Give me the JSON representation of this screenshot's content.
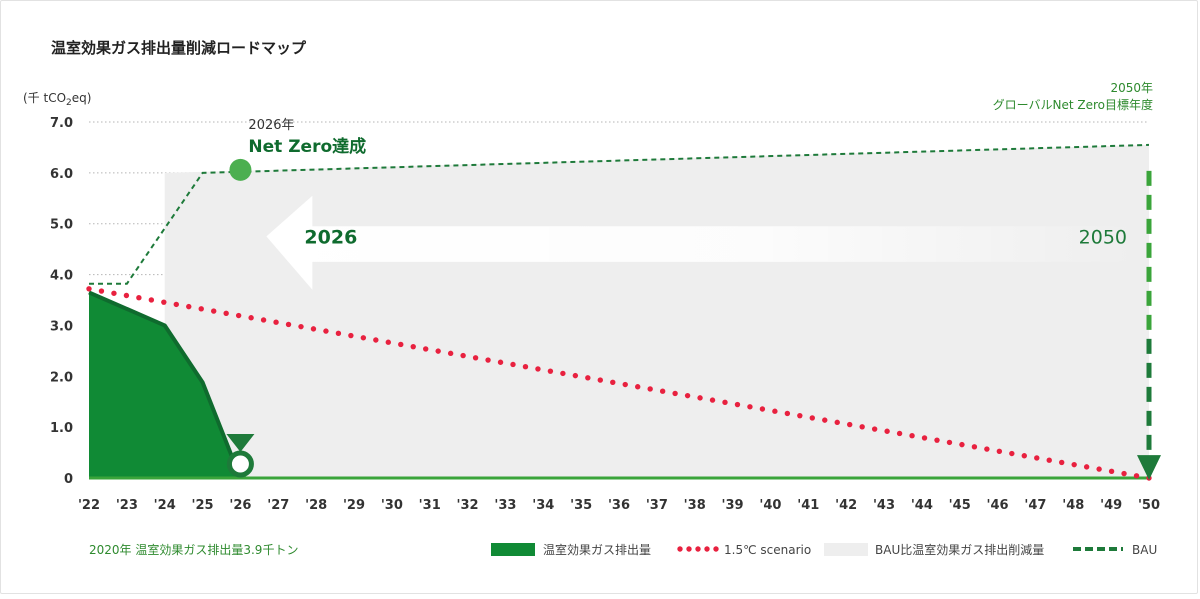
{
  "chart_data": {
    "type": "area",
    "title": "温室効果ガス排出量削減ロードマップ",
    "ylabel": "(千 tCO2eq)",
    "ylabel_parts": {
      "pre": "(千 tCO",
      "sub": "2",
      "post": "eq)"
    },
    "ylim": [
      0,
      7
    ],
    "y_ticks": [
      {
        "value": 0,
        "label": "0"
      },
      {
        "value": 1,
        "label": "1.0"
      },
      {
        "value": 2,
        "label": "2.0"
      },
      {
        "value": 3,
        "label": "3.0"
      },
      {
        "value": 4,
        "label": "4.0"
      },
      {
        "value": 5,
        "label": "5.0"
      },
      {
        "value": 6,
        "label": "6.0"
      },
      {
        "value": 7,
        "label": "7.0"
      }
    ],
    "x_labels": [
      "'22",
      "'23",
      "'24",
      "'25",
      "'26",
      "'27",
      "'28",
      "'29",
      "'30",
      "'31",
      "'32",
      "'33",
      "'34",
      "'35",
      "'36",
      "'37",
      "'38",
      "'39",
      "'40",
      "'41",
      "'42",
      "'43",
      "'44",
      "'45",
      "'46",
      "'47",
      "'48",
      "'49",
      "'50"
    ],
    "x_years": [
      2022,
      2023,
      2024,
      2025,
      2026,
      2027,
      2028,
      2029,
      2030,
      2031,
      2032,
      2033,
      2034,
      2035,
      2036,
      2037,
      2038,
      2039,
      2040,
      2041,
      2042,
      2043,
      2044,
      2045,
      2046,
      2047,
      2048,
      2049,
      2050
    ],
    "series": [
      {
        "name": "温室効果ガス排出量",
        "kind": "area",
        "color": "#108a35",
        "points": [
          [
            2022,
            3.65
          ],
          [
            2024,
            3.0
          ],
          [
            2025,
            1.88
          ],
          [
            2026,
            0
          ]
        ]
      },
      {
        "name": "1.5℃ scenario",
        "kind": "dotted",
        "color": "#e8213f",
        "points": [
          [
            2022,
            3.72
          ],
          [
            2050,
            0
          ]
        ]
      },
      {
        "name": "BAU比温室効果ガス排出削減量",
        "kind": "band",
        "color": "#eeeeee",
        "points": [
          [
            2024,
            0
          ],
          [
            2024,
            6.0
          ],
          [
            2050,
            6.55
          ],
          [
            2050,
            0
          ]
        ]
      },
      {
        "name": "BAU",
        "kind": "dashed",
        "color": "#1e7a3a",
        "points": [
          [
            2022,
            3.82
          ],
          [
            2023,
            3.82
          ],
          [
            2025,
            6.0
          ],
          [
            2026,
            6.02
          ],
          [
            2050,
            6.55
          ]
        ]
      }
    ],
    "annotations": {
      "netzero_year_label": "2026年",
      "netzero_label": "Net Zero達成",
      "netzero_year": 2026,
      "netzero_start_value": 6.0,
      "target_year_label": "2050年",
      "target_label": "グローバルNet Zero目標年度",
      "target_year": 2050,
      "arrow_left_label": "2026",
      "arrow_right_label": "2050",
      "baseline_note": "2020年 温室効果ガス排出量3.9千トン"
    },
    "grid": true,
    "legend_position": "bottom-right",
    "colors": {
      "dark_green": "#0f6b2e",
      "mid_green": "#3aa43a",
      "light_green": "#6ec252",
      "text_green": "#2e8a2e",
      "red": "#e8213f"
    }
  }
}
